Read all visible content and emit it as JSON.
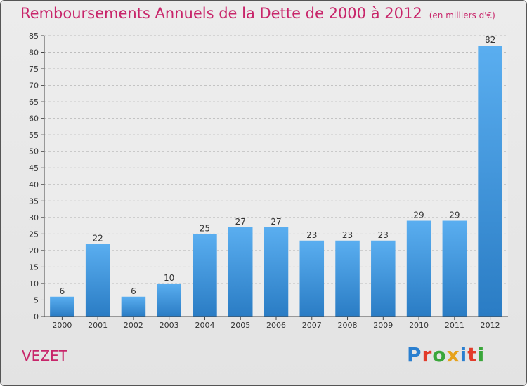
{
  "header": {
    "title": "Remboursements Annuels de la Dette de 2000 à 2012",
    "subtitle": "(en milliers d'€)"
  },
  "footer": {
    "commune": "VEZET",
    "logo_letters": [
      "P",
      "r",
      "o",
      "x",
      "i",
      "t",
      "i"
    ],
    "logo_colors": [
      "#2a7fd0",
      "#e23b2a",
      "#3aa63a",
      "#e7a21b",
      "#2a7fd0",
      "#e23b2a",
      "#3aa63a"
    ]
  },
  "chart_data": {
    "type": "bar",
    "categories": [
      "2000",
      "2001",
      "2002",
      "2003",
      "2004",
      "2005",
      "2006",
      "2007",
      "2008",
      "2009",
      "2010",
      "2011",
      "2012"
    ],
    "values": [
      6,
      22,
      6,
      10,
      25,
      27,
      27,
      23,
      23,
      23,
      29,
      29,
      82
    ],
    "ylim": [
      0,
      85
    ],
    "yticks": [
      0,
      5,
      10,
      15,
      20,
      25,
      30,
      35,
      40,
      45,
      50,
      55,
      60,
      65,
      70,
      75,
      80,
      85
    ],
    "grid": true,
    "bar_color_top": "#5aaef0",
    "bar_color_bottom": "#2a7cc4"
  }
}
